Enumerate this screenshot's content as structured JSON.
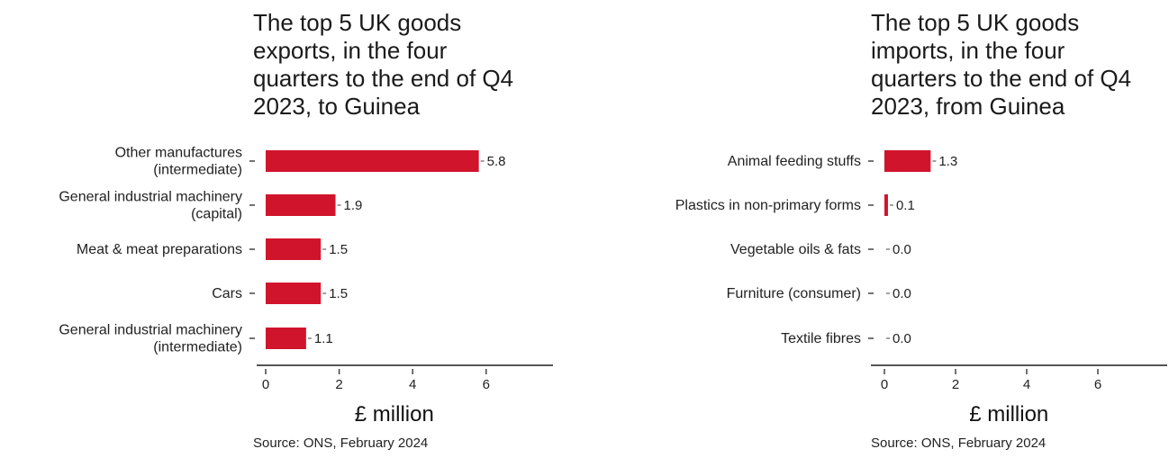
{
  "chart_data": [
    {
      "type": "bar",
      "orientation": "horizontal",
      "title_lines": [
        "The top 5 UK goods",
        "exports, in the four",
        "quarters to the end of Q4",
        "2023, to Guinea"
      ],
      "categories": [
        [
          "Other manufactures",
          "(intermediate)"
        ],
        [
          "General industrial machinery",
          "(capital)"
        ],
        [
          "Meat & meat preparations"
        ],
        [
          "Cars"
        ],
        [
          "General industrial machinery",
          "(intermediate)"
        ]
      ],
      "values": [
        5.8,
        1.9,
        1.5,
        1.5,
        1.1
      ],
      "value_labels": [
        "5.8",
        "1.9",
        "1.5",
        "1.5",
        "1.1"
      ],
      "xlabel": "£ million",
      "xticks": [
        0,
        2,
        4,
        6
      ],
      "xlim": [
        0,
        7.7
      ],
      "source": "Source: ONS, February 2024",
      "bar_color": "#d0142c"
    },
    {
      "type": "bar",
      "orientation": "horizontal",
      "title_lines": [
        "The top 5 UK goods",
        "imports, in the four",
        "quarters to the end of Q4",
        "2023, from Guinea"
      ],
      "categories": [
        [
          "Animal feeding stuffs"
        ],
        [
          "Plastics in non-primary forms"
        ],
        [
          "Vegetable oils & fats"
        ],
        [
          "Furniture (consumer)"
        ],
        [
          "Textile fibres"
        ]
      ],
      "values": [
        1.3,
        0.1,
        0.0,
        0.0,
        0.0
      ],
      "value_labels": [
        "1.3",
        "0.1",
        "0.0",
        "0.0",
        "0.0"
      ],
      "xlabel": "£ million",
      "xticks": [
        0,
        2,
        4,
        6
      ],
      "xlim": [
        0,
        7.7
      ],
      "source": "Source: ONS, February 2024",
      "bar_color": "#d0142c"
    }
  ]
}
